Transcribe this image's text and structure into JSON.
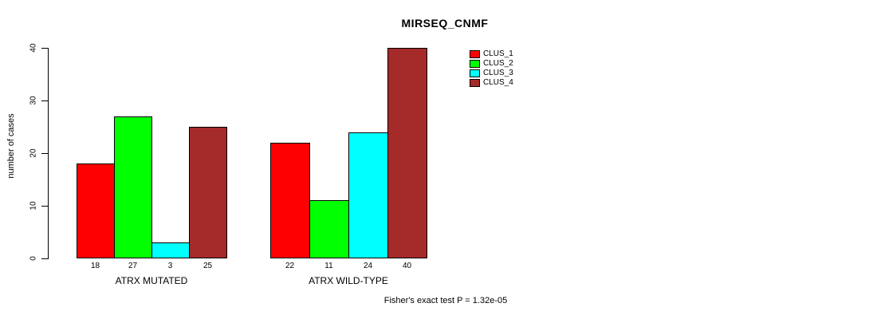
{
  "chart_data": {
    "type": "bar",
    "title": "MIRSEQ_CNMF",
    "ylabel": "number of cases",
    "ylim": [
      0,
      40
    ],
    "yticks": [
      0,
      10,
      20,
      30,
      40
    ],
    "grid": false,
    "legend_position": "top-right",
    "categories": [
      "ATRX MUTATED",
      "ATRX WILD-TYPE"
    ],
    "groups": [
      {
        "label": "ATRX MUTATED",
        "values": [
          18,
          27,
          3,
          25
        ]
      },
      {
        "label": "ATRX WILD-TYPE",
        "values": [
          22,
          11,
          24,
          40
        ]
      }
    ],
    "series": [
      {
        "name": "CLUS_1",
        "color": "#ff0000"
      },
      {
        "name": "CLUS_2",
        "color": "#00ff00"
      },
      {
        "name": "CLUS_3",
        "color": "#00ffff"
      },
      {
        "name": "CLUS_4",
        "color": "#a52a2a"
      }
    ],
    "annotation": "Fisher's exact test P = 1.32e-05"
  }
}
